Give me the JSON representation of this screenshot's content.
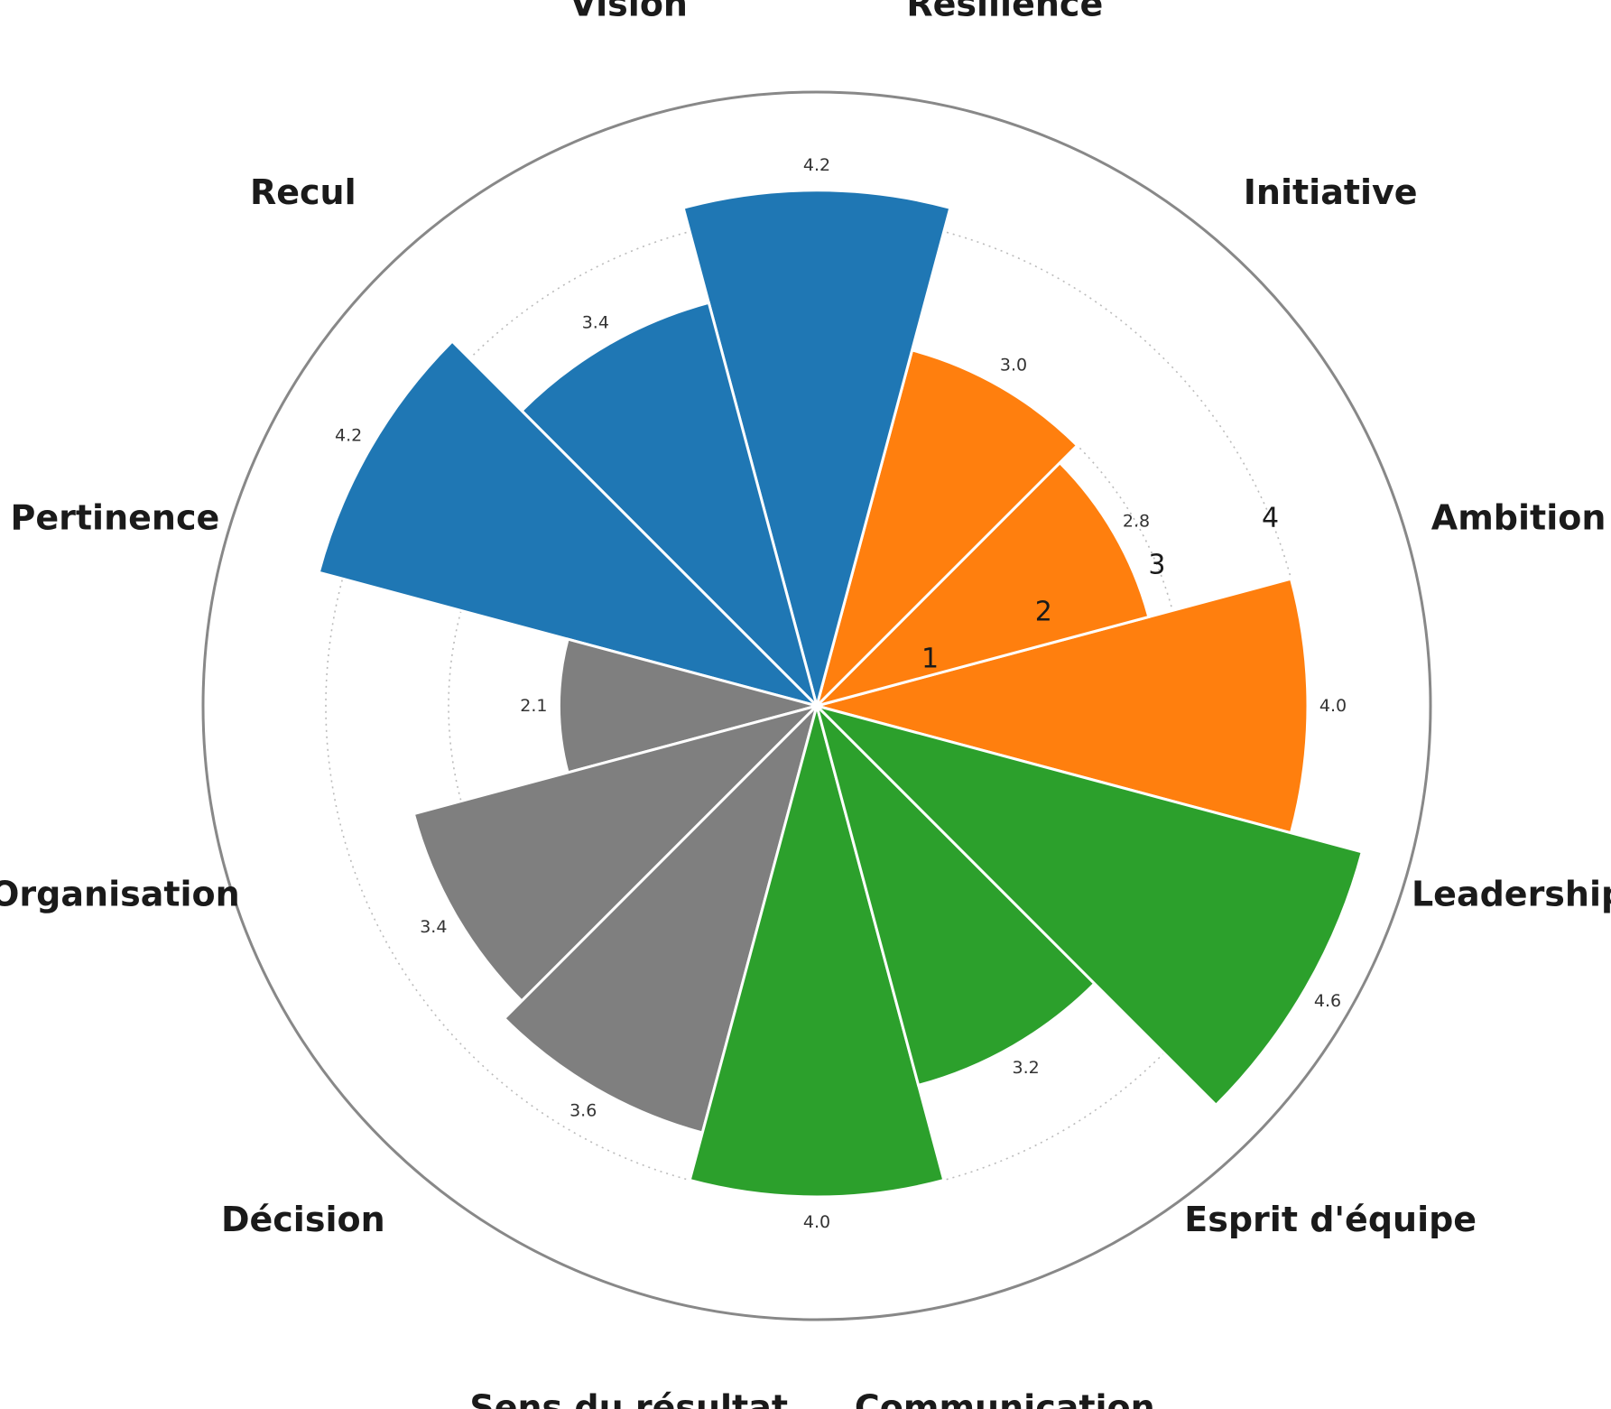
{
  "chart_data": {
    "type": "bar",
    "subtype": "polar",
    "categories": [
      "Ambition",
      "Initiative",
      "Résilience",
      "Vision",
      "Recul",
      "Pertinence",
      "Organisation",
      "Décision",
      "Sens du résultat",
      "Communication",
      "Esprit d'équipe",
      "Leadership"
    ],
    "values": [
      4.0,
      2.8,
      3.0,
      4.2,
      3.4,
      4.2,
      2.1,
      3.4,
      3.6,
      4.0,
      3.2,
      4.6
    ],
    "value_labels": [
      "4.0",
      "2.8",
      "3.0",
      "4.2",
      "3.4",
      "4.2",
      "2.1",
      "3.4",
      "3.6",
      "4.0",
      "3.2",
      "4.6"
    ],
    "colors": [
      "#ff7f0e",
      "#ff7f0e",
      "#ff7f0e",
      "#1f77b4",
      "#1f77b4",
      "#1f77b4",
      "#7f7f7f",
      "#7f7f7f",
      "#7f7f7f",
      "#2ca02c",
      "#2ca02c",
      "#2ca02c"
    ],
    "radial_ticks": [
      1,
      2,
      3,
      4
    ],
    "radial_tick_labels": [
      "1",
      "2",
      "3",
      "4"
    ],
    "rlim": [
      0,
      5
    ],
    "grid": true,
    "title": "",
    "legend": "none"
  }
}
